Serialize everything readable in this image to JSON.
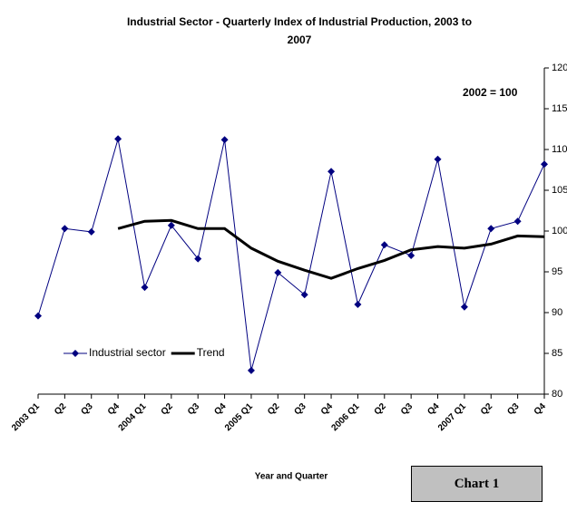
{
  "chart_data": {
    "type": "line",
    "title": "Industrial Sector - Quarterly Index of Industrial Production, 2003 to 2007",
    "x_label": "Year and Quarter",
    "annotation": "2002 = 100",
    "footer_box": "Chart 1",
    "categories": [
      "2003 Q1",
      "Q2",
      "Q3",
      "Q4",
      "2004 Q1",
      "Q2",
      "Q3",
      "Q4",
      "2005 Q1",
      "Q2",
      "Q3",
      "Q4",
      "2006 Q1",
      "Q2",
      "Q3",
      "Q4",
      "2007 Q1",
      "Q2",
      "Q3",
      "Q4"
    ],
    "series": [
      {
        "name": "Industrial sector",
        "color": "#000080",
        "marker": "diamond",
        "values": [
          89.6,
          100.3,
          99.9,
          111.3,
          93.1,
          100.7,
          96.6,
          111.2,
          82.9,
          94.9,
          92.2,
          107.3,
          91.0,
          98.3,
          97.0,
          108.8,
          90.7,
          100.3,
          101.2,
          108.2
        ]
      },
      {
        "name": "Trend",
        "color": "#000000",
        "values": [
          null,
          null,
          null,
          100.3,
          101.2,
          101.3,
          100.3,
          100.3,
          97.9,
          96.3,
          95.2,
          94.2,
          95.4,
          96.4,
          97.7,
          98.1,
          97.9,
          98.4,
          99.4,
          99.3
        ]
      }
    ],
    "ylim": [
      80,
      120
    ],
    "yticks": [
      80,
      85,
      90,
      95,
      100,
      105,
      110,
      115,
      120
    ],
    "y_axis_side": "right",
    "grid": false,
    "legend": "lower-left"
  }
}
